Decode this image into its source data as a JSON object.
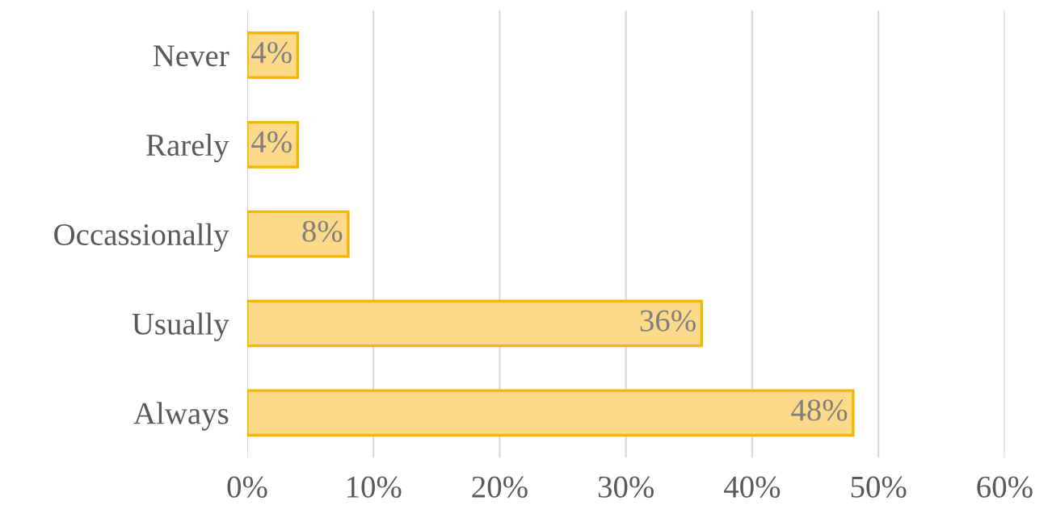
{
  "chart_data": {
    "type": "bar",
    "orientation": "horizontal",
    "categories": [
      "Never",
      "Rarely",
      "Occassionally",
      "Usually",
      "Always"
    ],
    "values": [
      4,
      4,
      8,
      36,
      48
    ],
    "value_labels": [
      "4%",
      "4%",
      "8%",
      "36%",
      "48%"
    ],
    "color": "#fdd98a",
    "xlim": [
      0,
      60
    ],
    "xticks": [
      {
        "value": 0,
        "label": "0%"
      },
      {
        "value": 10,
        "label": "10%"
      },
      {
        "value": 20,
        "label": "20%"
      },
      {
        "value": 30,
        "label": "30%"
      },
      {
        "value": 40,
        "label": "40%"
      },
      {
        "value": 50,
        "label": "50%"
      },
      {
        "value": 60,
        "label": "60%"
      }
    ],
    "grid": "x",
    "legend": false
  }
}
